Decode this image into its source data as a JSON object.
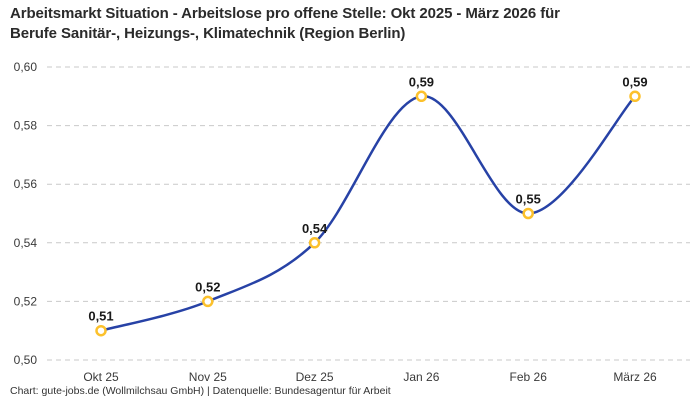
{
  "title_lines": [
    "Arbeitsmarkt Situation - Arbeitslose pro offene Stelle: Okt 2025 - März 2026 für",
    "Berufe Sanitär-, Heizungs-, Klimatechnik (Region Berlin)"
  ],
  "footer": "Chart: gute-jobs.de (Wollmilchsau GmbH) | Datenquelle: Bundesagentur für Arbeit",
  "chart_data": {
    "type": "line",
    "title": "Arbeitsmarkt Situation - Arbeitslose pro offene Stelle: Okt 2025 - März 2026 für Berufe Sanitär-, Heizungs-, Klimatechnik (Region Berlin)",
    "categories": [
      "Okt 25",
      "Nov 25",
      "Dez 25",
      "Jan 26",
      "Feb 26",
      "März 26"
    ],
    "values": [
      0.51,
      0.52,
      0.54,
      0.59,
      0.55,
      0.59
    ],
    "value_labels": [
      "0,51",
      "0,52",
      "0,54",
      "0,59",
      "0,55",
      "0,59"
    ],
    "y_ticks": [
      0.5,
      0.52,
      0.54,
      0.56,
      0.58,
      0.6
    ],
    "y_tick_labels": [
      "0,50",
      "0,52",
      "0,54",
      "0,56",
      "0,58",
      "0,60"
    ],
    "ylim": [
      0.5,
      0.6
    ],
    "xlabel": "",
    "ylabel": "",
    "grid": "horizontal-dashed",
    "legend": "none",
    "line_shape": "smooth-spline",
    "colors": {
      "line": "#2742a6",
      "marker_stroke": "#fcc12c",
      "marker_fill": "#ffffff",
      "grid": "#c9c9c9",
      "axis_text": "#3a3a3a",
      "value_label": "#1a1a1a",
      "title": "#2b2b2b",
      "footer": "#333333",
      "background": "#ffffff"
    }
  }
}
